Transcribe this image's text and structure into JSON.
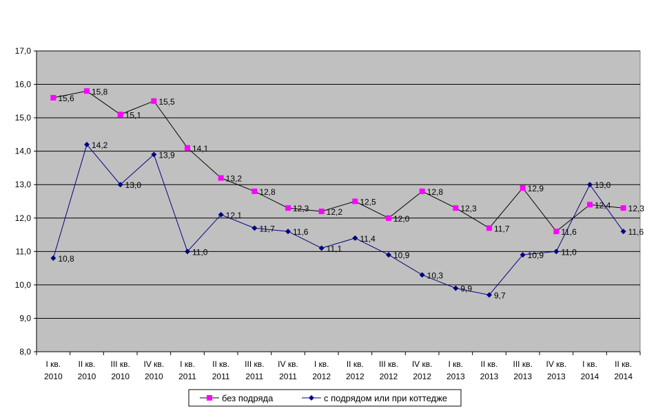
{
  "chart_data": {
    "type": "line",
    "title": "",
    "xlabel": "",
    "ylabel": "",
    "ylim": [
      8.0,
      17.0
    ],
    "yticks": [
      "8,0",
      "9,0",
      "10,0",
      "11,0",
      "12,0",
      "13,0",
      "14,0",
      "15,0",
      "16,0",
      "17,0"
    ],
    "grid": true,
    "legend_position": "bottom",
    "categories": [
      [
        "I кв.",
        "2010"
      ],
      [
        "II кв.",
        "2010"
      ],
      [
        "III кв.",
        "2010"
      ],
      [
        "IV кв.",
        "2010"
      ],
      [
        "I кв.",
        "2011"
      ],
      [
        "II кв.",
        "2011"
      ],
      [
        "III кв.",
        "2011"
      ],
      [
        "IV кв.",
        "2011"
      ],
      [
        "I кв.",
        "2012"
      ],
      [
        "II кв.",
        "2012"
      ],
      [
        "III кв.",
        "2012"
      ],
      [
        "IV кв.",
        "2012"
      ],
      [
        "I кв.",
        "2013"
      ],
      [
        "II кв.",
        "2013"
      ],
      [
        "III кв.",
        "2013"
      ],
      [
        "IV кв.",
        "2013"
      ],
      [
        "I кв.",
        "2014"
      ],
      [
        "II кв.",
        "2014"
      ]
    ],
    "series": [
      {
        "name": "без подряда",
        "marker": "square",
        "marker_color": "#ff00ff",
        "line_color": "#000000",
        "values": [
          15.6,
          15.8,
          15.1,
          15.5,
          14.1,
          13.2,
          12.8,
          12.3,
          12.2,
          12.5,
          12.0,
          12.8,
          12.3,
          11.7,
          12.9,
          11.6,
          12.4,
          12.3
        ],
        "labels": [
          "15,6",
          "15,8",
          "15,1",
          "15,5",
          "14,1",
          "13,2",
          "12,8",
          "12,3",
          "12,2",
          "12,5",
          "12,0",
          "12,8",
          "12,3",
          "11,7",
          "12,9",
          "11,6",
          "12,4",
          "12,3"
        ]
      },
      {
        "name": "с подрядом или при коттедже",
        "marker": "diamond",
        "marker_color": "#000080",
        "line_color": "#000080",
        "values": [
          10.8,
          14.2,
          13.0,
          13.9,
          11.0,
          12.1,
          11.7,
          11.6,
          11.1,
          11.4,
          10.9,
          10.3,
          9.9,
          9.7,
          10.9,
          11.0,
          13.0,
          11.6
        ],
        "labels": [
          "10,8",
          "14,2",
          "13,0",
          "13,9",
          "11,0",
          "12,1",
          "11,7",
          "11,6",
          "11,1",
          "11,4",
          "10,9",
          "10,3",
          "9,9",
          "9,7",
          "10,9",
          "11,0",
          "13,0",
          "11,6"
        ]
      }
    ],
    "colors": {
      "plot_bg": "#c0c0c0",
      "grid": "#000000"
    }
  }
}
